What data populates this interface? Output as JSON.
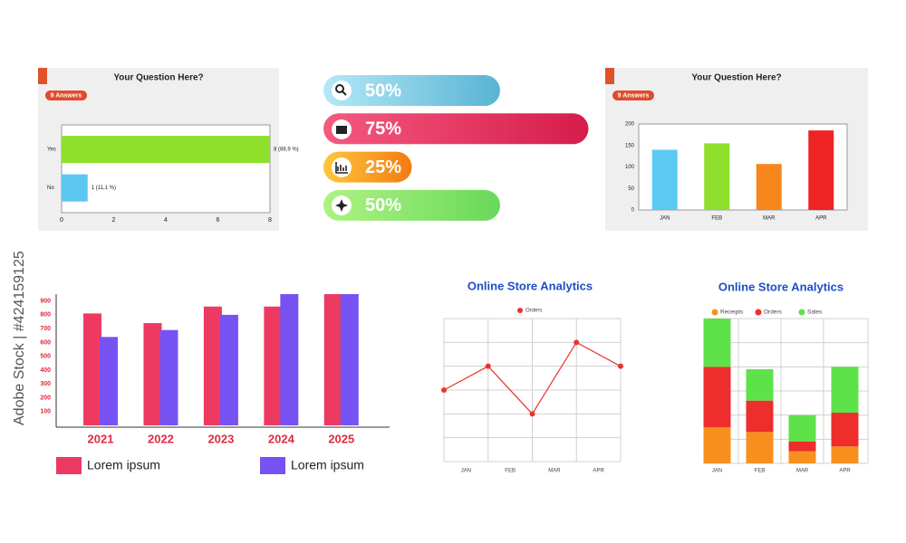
{
  "watermark": "Adobe Stock | #424159125",
  "chart_data": [
    {
      "type": "hbar",
      "title": "Your Question Here?",
      "badge": "9 Answers",
      "categories": [
        "Yes",
        "No"
      ],
      "values": [
        8,
        1
      ],
      "value_labels": [
        "8 (88,9 %)",
        "1 (11,1 %)"
      ],
      "colors": [
        "#8fe02c",
        "#5cc8f2"
      ],
      "xlim": [
        0,
        8
      ],
      "xticks": [
        0,
        2,
        4,
        6,
        8
      ]
    },
    {
      "type": "progress",
      "values": [
        50,
        75,
        25,
        50
      ],
      "value_labels": [
        "50%",
        "75%",
        "25%",
        "50%"
      ],
      "colors": [
        [
          "#b4e8f7",
          "#58b4d4"
        ],
        [
          "#f45a80",
          "#d61c4b"
        ],
        [
          "#ffc83c",
          "#f47a12"
        ],
        [
          "#aef283",
          "#68d95a"
        ]
      ],
      "xlim": [
        0,
        100
      ]
    },
    {
      "type": "bar",
      "title": "Your Question Here?",
      "badge": "9 Answers",
      "categories": [
        "JAN",
        "FEB",
        "MAR",
        "APR"
      ],
      "values": [
        140,
        155,
        107,
        185
      ],
      "colors": [
        "#5bcaf2",
        "#8fe02c",
        "#f7861c",
        "#ee2424"
      ],
      "ylim": [
        0,
        200
      ],
      "yticks": [
        0,
        50,
        100,
        150,
        200
      ]
    },
    {
      "type": "grouped_bar",
      "categories": [
        "2021",
        "2022",
        "2023",
        "2024",
        "2025"
      ],
      "series": [
        {
          "name": "Lorem ipsum",
          "color": "#ee3a62",
          "values": [
            810,
            740,
            860,
            860,
            950
          ]
        },
        {
          "name": "Lorem ipsum",
          "color": "#7752f2",
          "values": [
            640,
            690,
            800,
            950,
            950
          ]
        }
      ],
      "ylim": [
        0,
        950
      ],
      "yticks": [
        100,
        200,
        300,
        400,
        500,
        600,
        700,
        800,
        900
      ]
    },
    {
      "type": "line",
      "title": "Online Store Analytics",
      "x": [
        0,
        1,
        2,
        3,
        4
      ],
      "xlim": [
        0,
        4
      ],
      "xticks": [
        {
          "value": 0.5,
          "label": "JAN"
        },
        {
          "value": 1.5,
          "label": "FEB"
        },
        {
          "value": 2.5,
          "label": "MAR"
        },
        {
          "value": 3.5,
          "label": "APR"
        }
      ],
      "series": [
        {
          "name": "Orders",
          "color": "#e8352c",
          "values": [
            3,
            4,
            2,
            5,
            4
          ]
        }
      ],
      "ylim": [
        0,
        6
      ],
      "yticks": [
        0,
        1,
        2,
        3,
        4,
        5,
        6
      ],
      "grid": true
    },
    {
      "type": "stacked_bar",
      "title": "Online Store Analytics",
      "categories": [
        "JAN",
        "FEB",
        "MAR",
        "APR"
      ],
      "series": [
        {
          "name": "Receipts",
          "color": "#f7901e",
          "values": [
            1.5,
            1.3,
            0.5,
            0.7
          ]
        },
        {
          "name": "Orders",
          "color": "#ee2d2d",
          "values": [
            2.5,
            1.3,
            0.4,
            1.4
          ]
        },
        {
          "name": "Sales",
          "color": "#5ee24a",
          "values": [
            2,
            1.3,
            1.1,
            1.9
          ]
        }
      ],
      "ylim": [
        0,
        6
      ],
      "yticks": [
        0,
        1,
        2,
        3,
        4,
        5,
        6
      ],
      "grid": true
    }
  ]
}
